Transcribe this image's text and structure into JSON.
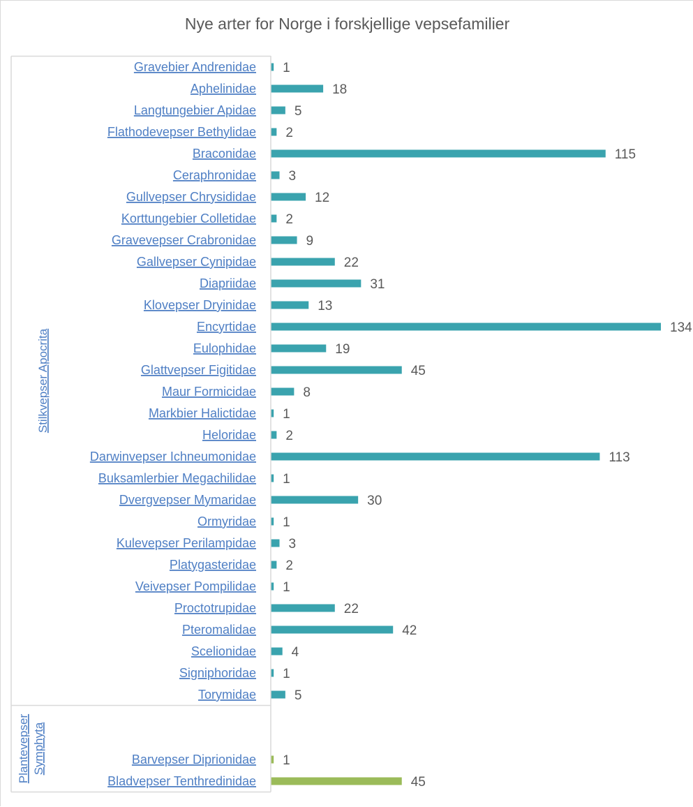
{
  "chart_data": {
    "type": "bar",
    "orientation": "horizontal",
    "title": "Nye arter for Norge i forskjellige vepsefamilier",
    "xlabel": "",
    "ylabel": "",
    "xlim": [
      0,
      134
    ],
    "grid": false,
    "legend": "none",
    "show_value_labels": true,
    "groups": [
      {
        "name": "Stilkvepser Apocrita",
        "color": "#3aa3ae",
        "categories": [
          "Gravebier Andrenidae",
          "Aphelinidae",
          "Langtungebier Apidae",
          "Flathodevepser Bethylidae",
          "Braconidae",
          "Ceraphronidae",
          "Gullvepser Chrysididae",
          "Korttungebier Colletidae",
          "Gravevepser Crabronidae",
          "Gallvepser Cynipidae",
          "Diapriidae",
          "Klovepser Dryinidae",
          "Encyrtidae",
          "Eulophidae",
          "Glattvepser Figitidae",
          "Maur Formicidae",
          "Markbier Halictidae",
          "Heloridae",
          "Darwinvepser Ichneumonidae",
          "Buksamlerbier Megachilidae",
          "Dvergvepser Mymaridae",
          "Ormyridae",
          "Kulevepser Perilampidae",
          "Platygasteridae",
          "Veivepser Pompilidae",
          "Proctotrupidae",
          "Pteromalidae",
          "Scelionidae",
          "Signiphoridae",
          "Torymidae"
        ],
        "values": [
          1,
          18,
          5,
          2,
          115,
          3,
          12,
          2,
          9,
          22,
          31,
          13,
          134,
          19,
          45,
          8,
          1,
          2,
          113,
          1,
          30,
          1,
          3,
          2,
          1,
          22,
          42,
          4,
          1,
          5
        ]
      },
      {
        "name": "Plantevepser Symphyta",
        "name_lines": [
          "Plantevepser",
          "Symphyta"
        ],
        "color": "#9bbb59",
        "categories": [
          "",
          "",
          "Barvepser Diprionidae",
          "Bladvepser Tenthredinidae"
        ],
        "values": [
          null,
          null,
          1,
          45
        ]
      }
    ]
  }
}
